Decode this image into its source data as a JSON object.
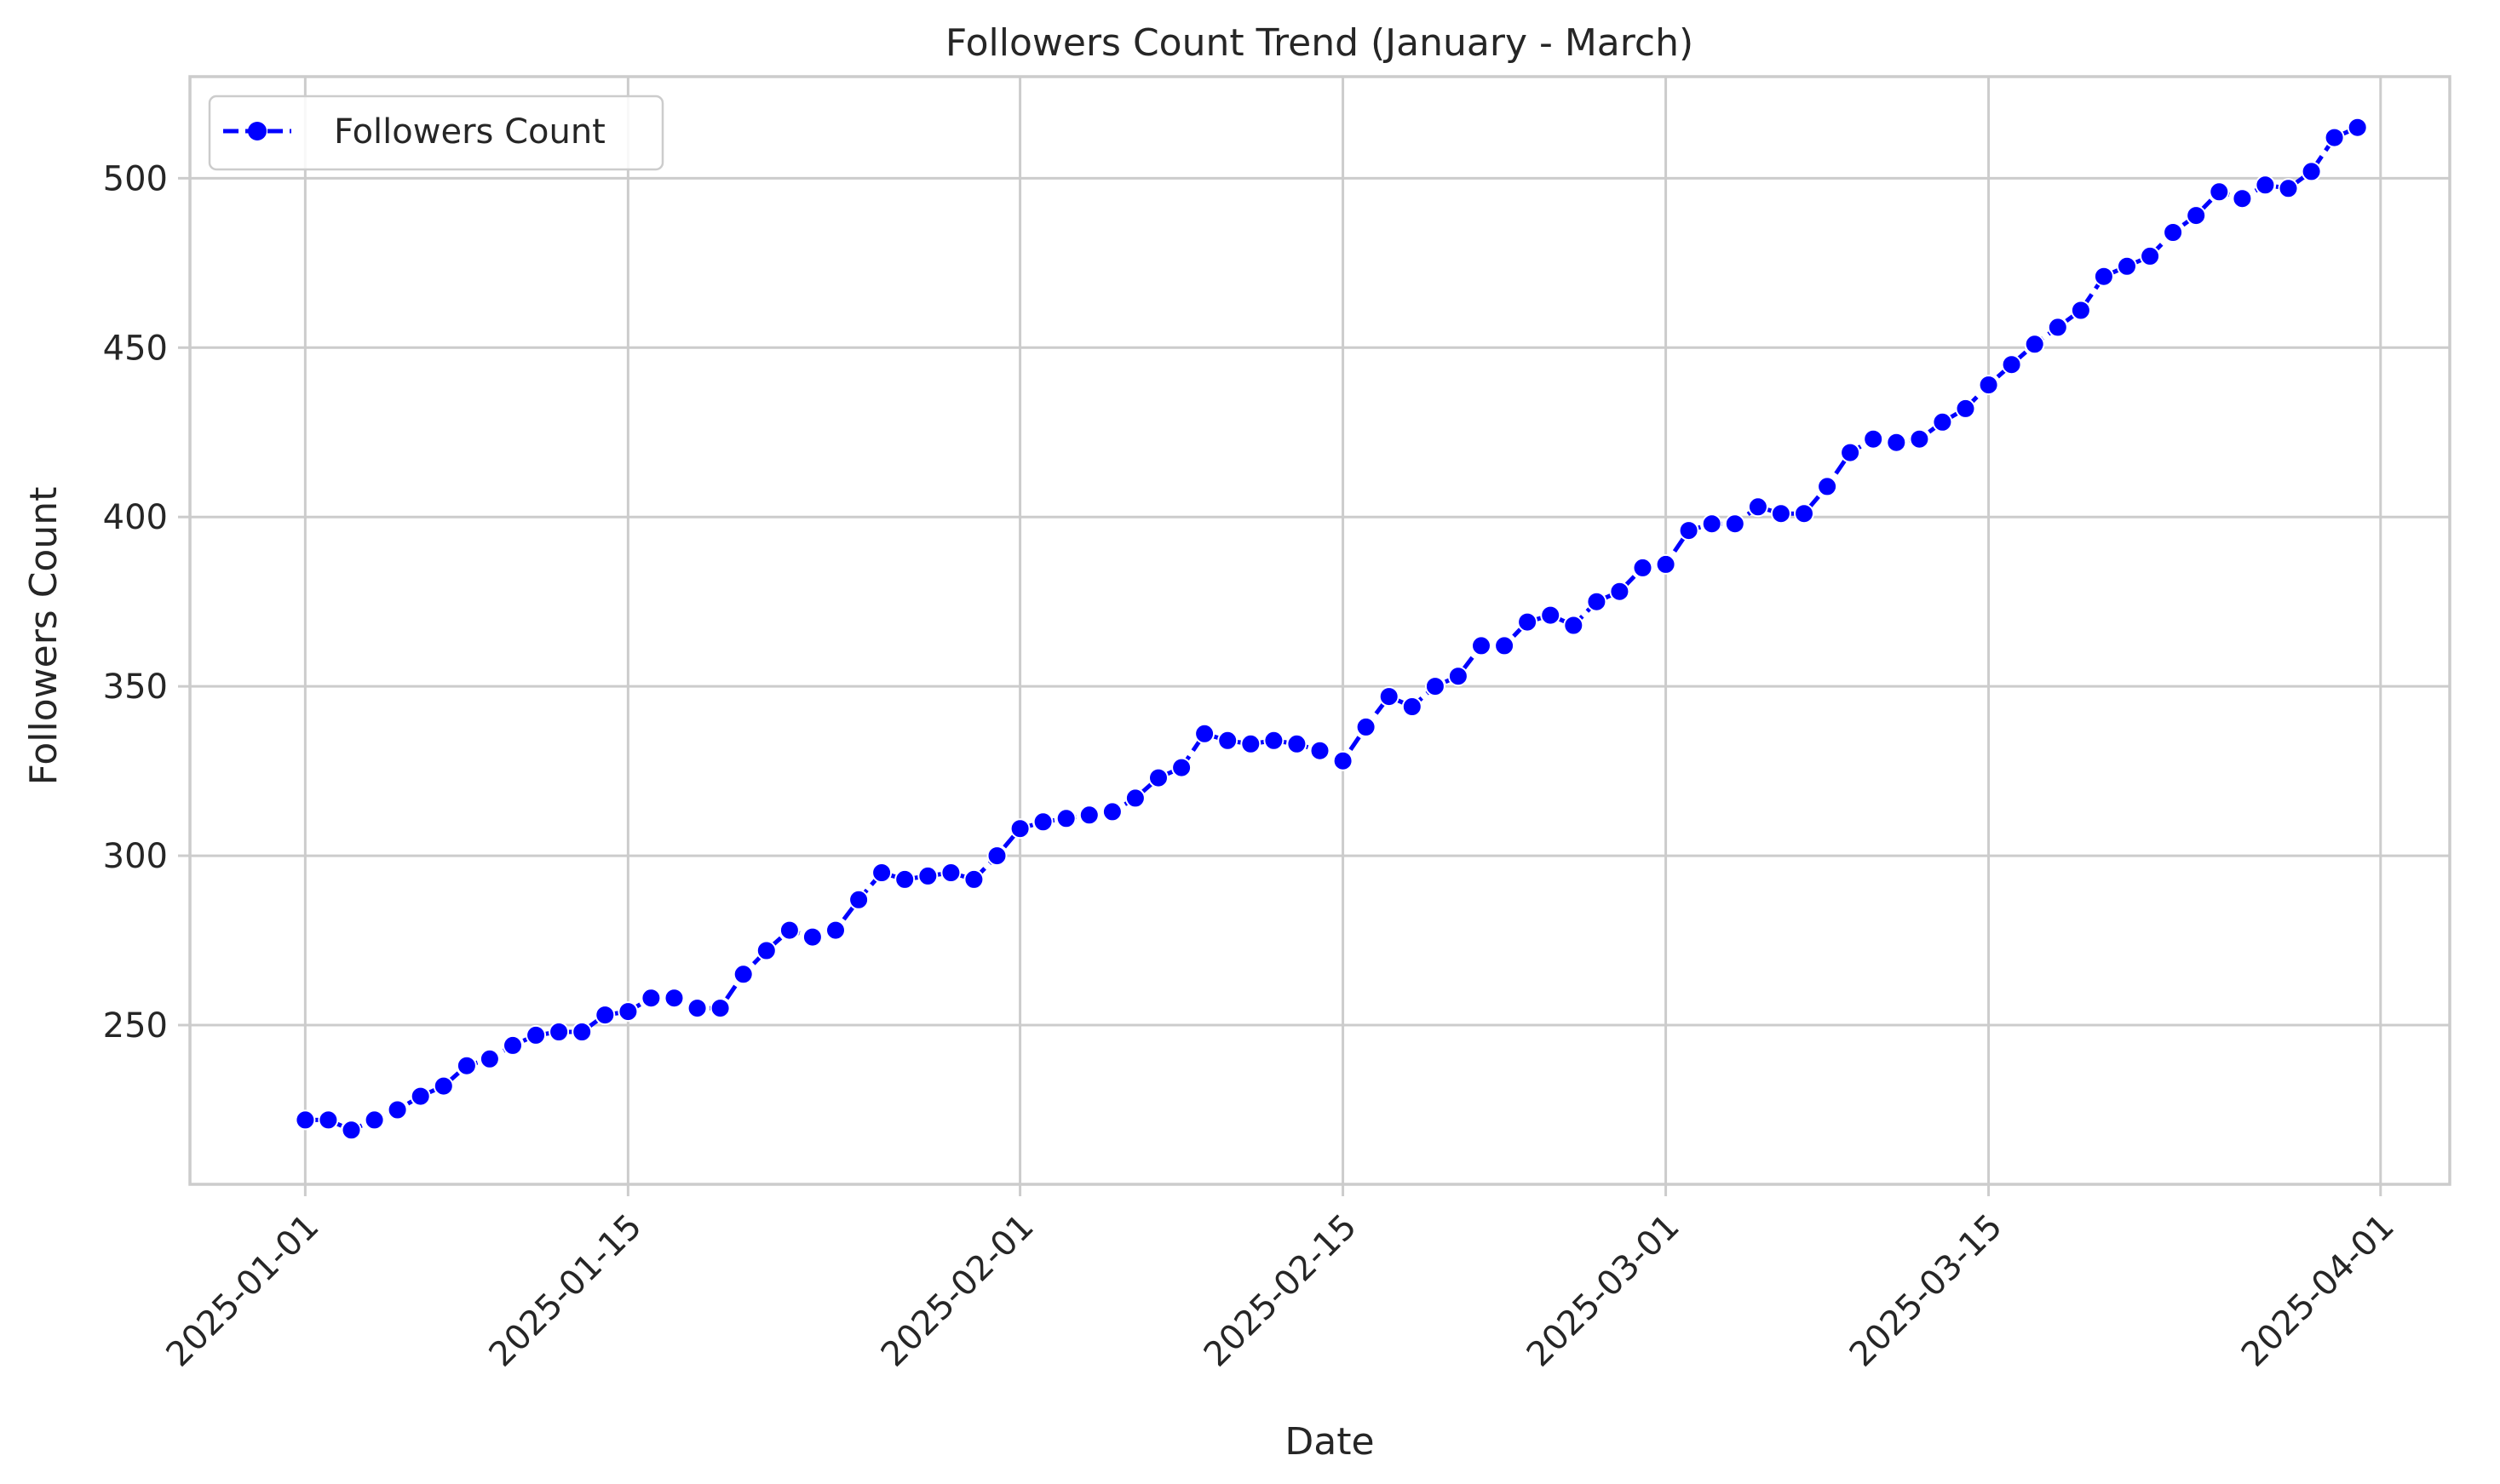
{
  "chart_data": {
    "type": "line",
    "title": "Followers Count Trend (January - March)",
    "xlabel": "Date",
    "ylabel": "Followers Count",
    "x_start": "2025-01-01",
    "x_ticks": [
      "2025-01-01",
      "2025-01-15",
      "2025-02-01",
      "2025-02-15",
      "2025-03-01",
      "2025-03-15",
      "2025-04-01"
    ],
    "y_ticks": [
      250,
      300,
      350,
      400,
      450,
      500
    ],
    "xlim": [
      "2024-12-27",
      "2025-04-04"
    ],
    "ylim": [
      203,
      530
    ],
    "grid": true,
    "legend": {
      "position": "top-left",
      "entries": [
        "Followers Count"
      ]
    },
    "colors": {
      "series": "#0000ff",
      "grid": "#cccccc",
      "text": "#262626"
    },
    "series": [
      {
        "name": "Followers Count",
        "style": "dashed line with circle markers",
        "x": [
          "2025-01-01",
          "2025-01-02",
          "2025-01-03",
          "2025-01-04",
          "2025-01-05",
          "2025-01-06",
          "2025-01-07",
          "2025-01-08",
          "2025-01-09",
          "2025-01-10",
          "2025-01-11",
          "2025-01-12",
          "2025-01-13",
          "2025-01-14",
          "2025-01-15",
          "2025-01-16",
          "2025-01-17",
          "2025-01-18",
          "2025-01-19",
          "2025-01-20",
          "2025-01-21",
          "2025-01-22",
          "2025-01-23",
          "2025-01-24",
          "2025-01-25",
          "2025-01-26",
          "2025-01-27",
          "2025-01-28",
          "2025-01-29",
          "2025-01-30",
          "2025-01-31",
          "2025-02-01",
          "2025-02-02",
          "2025-02-03",
          "2025-02-04",
          "2025-02-05",
          "2025-02-06",
          "2025-02-07",
          "2025-02-08",
          "2025-02-09",
          "2025-02-10",
          "2025-02-11",
          "2025-02-12",
          "2025-02-13",
          "2025-02-14",
          "2025-02-15",
          "2025-02-16",
          "2025-02-17",
          "2025-02-18",
          "2025-02-19",
          "2025-02-20",
          "2025-02-21",
          "2025-02-22",
          "2025-02-23",
          "2025-02-24",
          "2025-02-25",
          "2025-02-26",
          "2025-02-27",
          "2025-02-28",
          "2025-03-01",
          "2025-03-02",
          "2025-03-03",
          "2025-03-04",
          "2025-03-05",
          "2025-03-06",
          "2025-03-07",
          "2025-03-08",
          "2025-03-09",
          "2025-03-10",
          "2025-03-11",
          "2025-03-12",
          "2025-03-13",
          "2025-03-14",
          "2025-03-15",
          "2025-03-16",
          "2025-03-17",
          "2025-03-18",
          "2025-03-19",
          "2025-03-20",
          "2025-03-21",
          "2025-03-22",
          "2025-03-23",
          "2025-03-24",
          "2025-03-25",
          "2025-03-26",
          "2025-03-27",
          "2025-03-28",
          "2025-03-29",
          "2025-03-30",
          "2025-03-31"
        ],
        "values": [
          222,
          222,
          219,
          222,
          225,
          229,
          232,
          238,
          240,
          244,
          247,
          248,
          248,
          253,
          254,
          258,
          258,
          255,
          255,
          265,
          272,
          278,
          276,
          278,
          287,
          295,
          293,
          294,
          295,
          293,
          300,
          308,
          310,
          311,
          312,
          313,
          317,
          323,
          326,
          336,
          334,
          333,
          334,
          333,
          331,
          328,
          338,
          347,
          344,
          350,
          353,
          362,
          362,
          369,
          371,
          368,
          375,
          378,
          385,
          386,
          396,
          398,
          398,
          403,
          401,
          401,
          409,
          419,
          423,
          422,
          423,
          428,
          432,
          439,
          445,
          451,
          456,
          461,
          471,
          474,
          477,
          484,
          489,
          496,
          494,
          498,
          497,
          502,
          512,
          515
        ]
      }
    ]
  }
}
